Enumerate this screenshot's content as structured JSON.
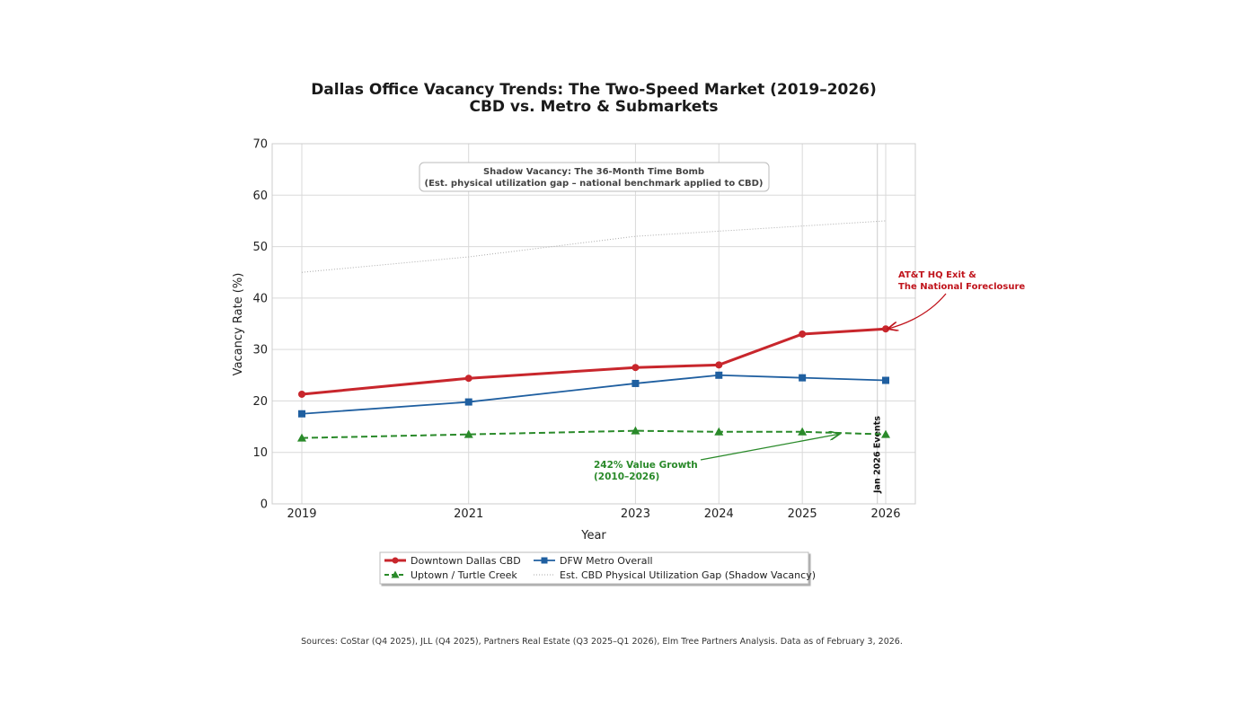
{
  "chart_data": {
    "type": "line",
    "title": "Dallas Office Vacancy Trends: The Two-Speed Market (2019–2026)",
    "subtitle": "CBD vs. Metro & Submarkets",
    "xlabel": "Year",
    "ylabel": "Vacancy Rate (%)",
    "x": [
      2019,
      2021,
      2023,
      2024,
      2025,
      2026
    ],
    "x_tick_labels": [
      "2019",
      "2021",
      "2023",
      "2024",
      "2025",
      "2026"
    ],
    "ylim": [
      0,
      70
    ],
    "y_ticks": [
      0,
      10,
      20,
      30,
      40,
      50,
      60,
      70
    ],
    "grid": true,
    "legend_position": "bottom-center",
    "series": [
      {
        "name": "Downtown Dallas CBD",
        "color": "#c8262c",
        "style": "solid-thick",
        "marker": "circle",
        "values": [
          21.3,
          24.4,
          26.5,
          27.0,
          33.0,
          34.0
        ]
      },
      {
        "name": "DFW Metro Overall",
        "color": "#1f5fa0",
        "style": "solid",
        "marker": "square",
        "values": [
          17.5,
          19.8,
          23.4,
          25.0,
          24.5,
          24.0
        ]
      },
      {
        "name": "Uptown / Turtle Creek",
        "color": "#2a8a2a",
        "style": "dashed",
        "marker": "triangle",
        "values": [
          12.8,
          13.5,
          14.2,
          14.0,
          14.0,
          13.5
        ]
      },
      {
        "name": "Est. CBD Physical Utilization Gap (Shadow Vacancy)",
        "color": "#aaaaaa",
        "style": "dotted",
        "marker": "none",
        "values": [
          45,
          48,
          52,
          53,
          54,
          55
        ]
      }
    ],
    "legend_order": [
      0,
      2,
      1,
      3
    ],
    "annotations": {
      "shadow_box": {
        "line1": "Shadow Vacancy: The 36-Month Time Bomb",
        "line2": "(Est. physical utilization gap – national benchmark applied to CBD)"
      },
      "att": {
        "line1": "AT&T HQ Exit &",
        "line2": "The National Foreclosure",
        "color": "#c0141c",
        "target_x": 2026,
        "target_y": 34.0
      },
      "growth": {
        "line1": "242% Value Growth",
        "line2": "(2010–2026)",
        "color": "#2a8a2a",
        "target_x": 2025.45,
        "target_y": 13.6
      },
      "event_line": {
        "label": "Jan 2026 Events",
        "x": 2025.9
      }
    },
    "source": "Sources: CoStar (Q4 2025), JLL (Q4 2025), Partners Real Estate (Q3 2025–Q1 2026), Elm Tree Partners Analysis. Data as of February 3, 2026."
  }
}
